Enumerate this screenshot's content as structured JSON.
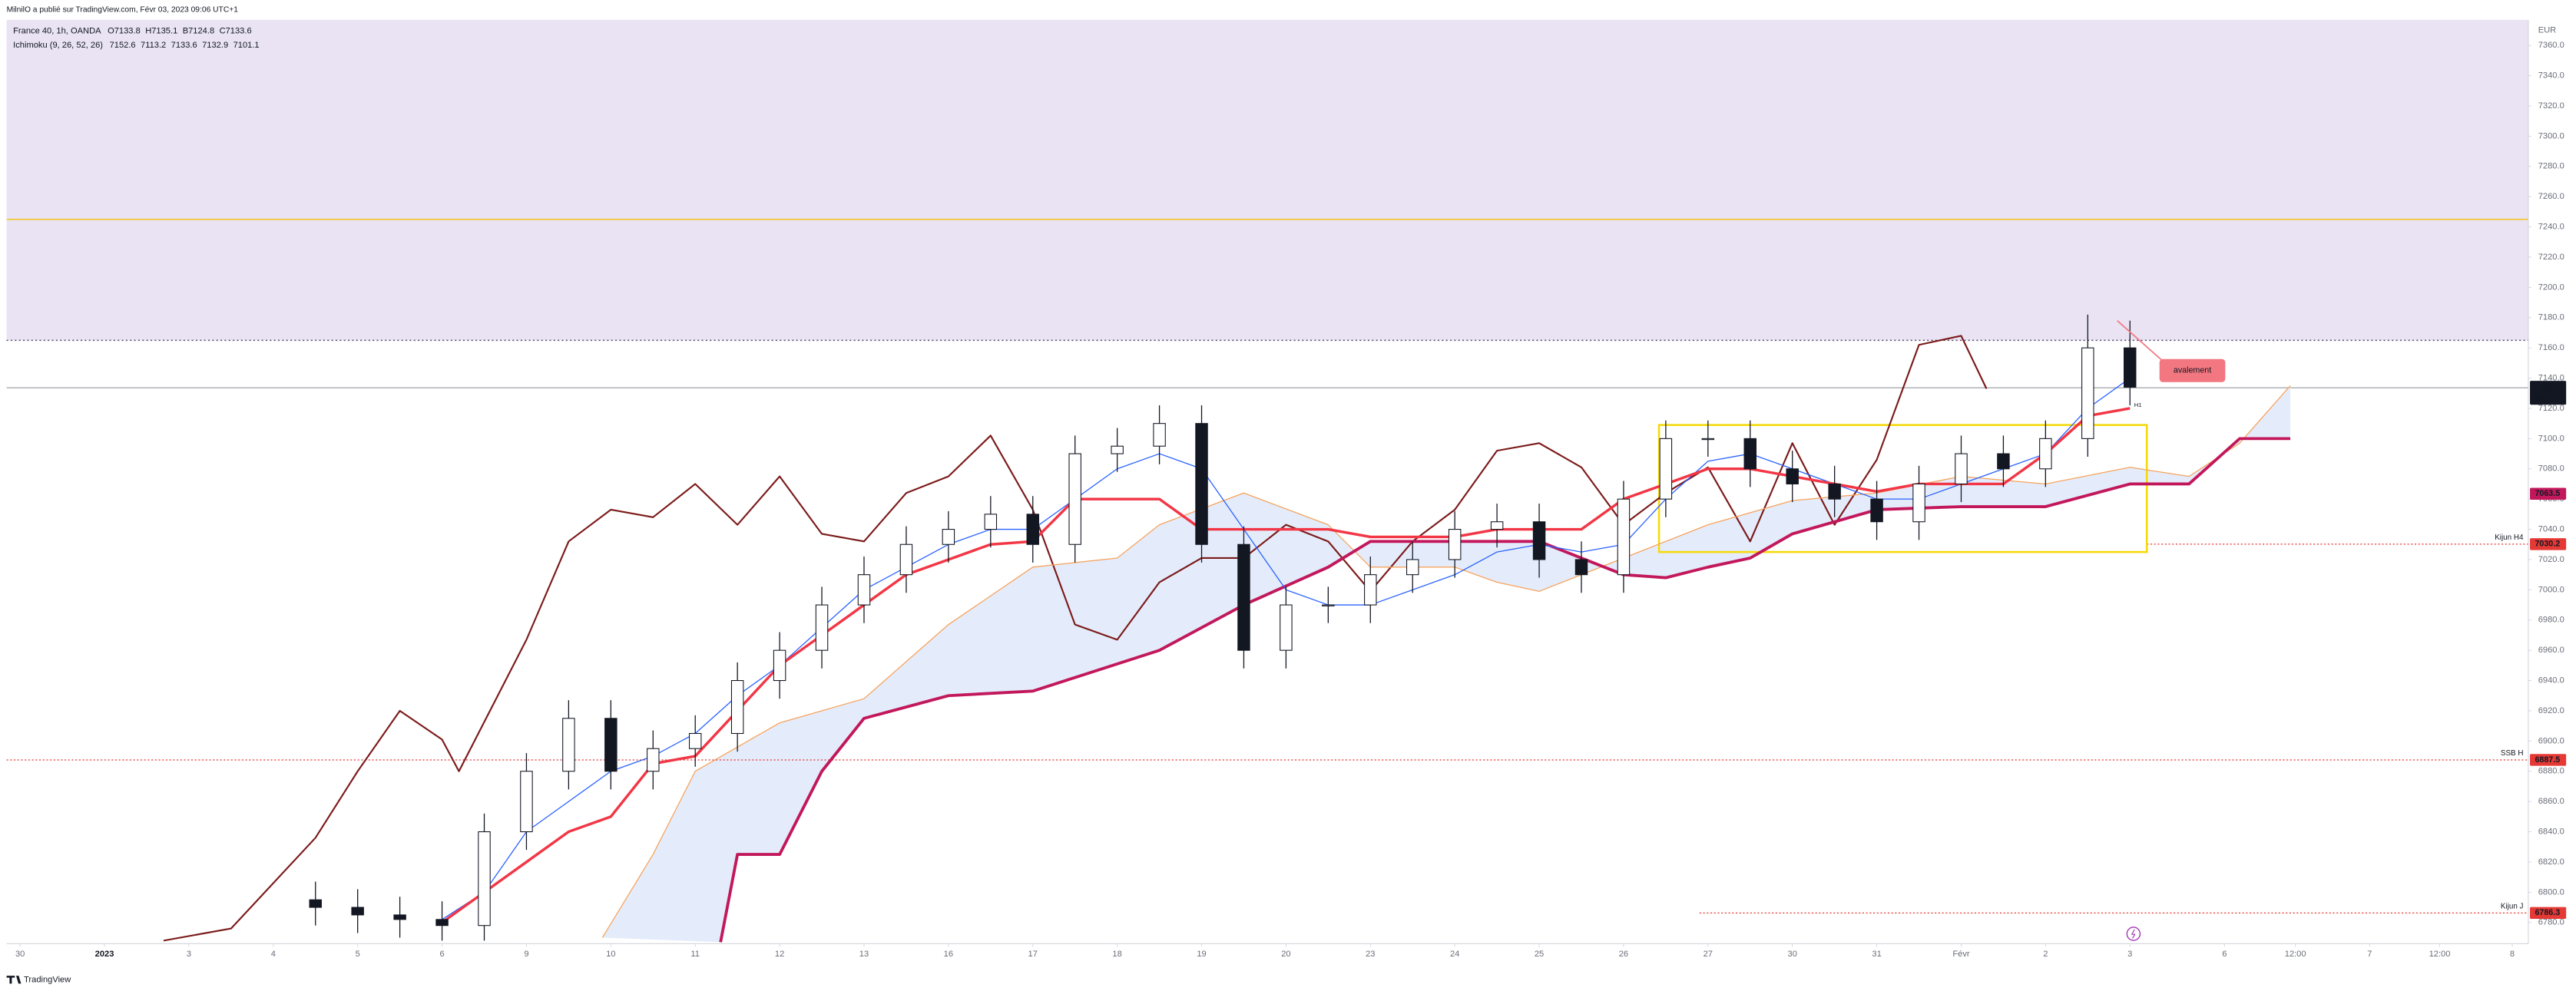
{
  "header": {
    "published": "MilnilO a publié sur TradingView.com, Févr 03, 2023 09:06 UTC+1",
    "symbol": "France 40, 1h, OANDA",
    "ohlc": [
      "O7133.8",
      "H7135.1",
      "B7124.8",
      "C7133.6"
    ],
    "indicator": "Ichimoku (9, 26, 52, 26)",
    "indicator_values": [
      {
        "value": 7152.6,
        "color": "#2962ff"
      },
      {
        "value": 7113.2,
        "color": "#f23645"
      },
      {
        "value": 7133.6,
        "color": "#2e7d32"
      },
      {
        "value": 7132.9,
        "color": "#f7a35c"
      },
      {
        "value": 7101.1,
        "color": "#c2185b"
      }
    ]
  },
  "currency": "EUR",
  "footer": "TradingView",
  "chart_data": {
    "type": "candlestick",
    "xlim": [
      -0.16,
      29.72
    ],
    "ylim": [
      6766,
      7377
    ],
    "grid": false,
    "xticks": [
      {
        "value": 0,
        "label": "30"
      },
      {
        "value": 1,
        "label": "2023"
      },
      {
        "value": 2,
        "label": "3"
      },
      {
        "value": 3,
        "label": "4"
      },
      {
        "value": 4,
        "label": "5"
      },
      {
        "value": 5,
        "label": "6"
      },
      {
        "value": 6,
        "label": "9"
      },
      {
        "value": 7,
        "label": "10"
      },
      {
        "value": 8,
        "label": "11"
      },
      {
        "value": 9,
        "label": "12"
      },
      {
        "value": 10,
        "label": "13"
      },
      {
        "value": 11,
        "label": "16"
      },
      {
        "value": 12,
        "label": "17"
      },
      {
        "value": 13,
        "label": "18"
      },
      {
        "value": 14,
        "label": "19"
      },
      {
        "value": 15,
        "label": "20"
      },
      {
        "value": 16,
        "label": "23"
      },
      {
        "value": 17,
        "label": "24"
      },
      {
        "value": 18,
        "label": "25"
      },
      {
        "value": 19,
        "label": "26"
      },
      {
        "value": 20,
        "label": "27"
      },
      {
        "value": 21,
        "label": "30"
      },
      {
        "value": 22,
        "label": "31"
      },
      {
        "value": 23,
        "label": "Févr"
      },
      {
        "value": 24,
        "label": "2"
      },
      {
        "value": 25,
        "label": "3"
      },
      {
        "value": 26.12,
        "label": "6"
      },
      {
        "value": 26.96,
        "label": "12:00"
      },
      {
        "value": 27.84,
        "label": "7"
      },
      {
        "value": 28.67,
        "label": "12:00"
      },
      {
        "value": 29.53,
        "label": "8"
      }
    ],
    "yticks": [
      {
        "value": 6780,
        "label": "6780.0"
      },
      {
        "value": 6800,
        "label": "6800.0"
      },
      {
        "value": 6820,
        "label": "6820.0"
      },
      {
        "value": 6840,
        "label": "6840.0"
      },
      {
        "value": 6860,
        "label": "6860.0"
      },
      {
        "value": 6880,
        "label": "6880.0"
      },
      {
        "value": 6900,
        "label": "6900.0"
      },
      {
        "value": 6920,
        "label": "6920.0"
      },
      {
        "value": 6940,
        "label": "6940.0"
      },
      {
        "value": 6960,
        "label": "6960.0"
      },
      {
        "value": 6980,
        "label": "6980.0"
      },
      {
        "value": 7000,
        "label": "7000.0"
      },
      {
        "value": 7020,
        "label": "7020.0"
      },
      {
        "value": 7040,
        "label": "7040.0"
      },
      {
        "value": 7060,
        "label": "7060.0"
      },
      {
        "value": 7080,
        "label": "7080.0"
      },
      {
        "value": 7100,
        "label": "7100.0"
      },
      {
        "value": 7120,
        "label": "7120.0"
      },
      {
        "value": 7140,
        "label": "7140.0"
      },
      {
        "value": 7160,
        "label": "7160.0"
      },
      {
        "value": 7180,
        "label": "7180.0"
      },
      {
        "value": 7200,
        "label": "7200.0"
      },
      {
        "value": 7220,
        "label": "7220.0"
      },
      {
        "value": 7240,
        "label": "7240.0"
      },
      {
        "value": 7260,
        "label": "7260.0"
      },
      {
        "value": 7280,
        "label": "7280.0"
      },
      {
        "value": 7300,
        "label": "7300.0"
      },
      {
        "value": 7320,
        "label": "7320.0"
      },
      {
        "value": 7340,
        "label": "7340.0"
      },
      {
        "value": 7360,
        "label": "7360.0"
      }
    ],
    "candles": {
      "up_color": "#ffffff",
      "down_color": "#131722",
      "x": [
        3.5,
        4,
        4.5,
        5,
        5.5,
        6,
        6.5,
        7,
        7.5,
        8,
        8.5,
        9,
        9.5,
        10,
        10.5,
        11,
        11.5,
        12,
        12.5,
        13,
        13.5,
        14,
        14.5,
        15,
        15.5,
        16,
        16.5,
        17,
        17.5,
        18,
        18.5,
        19,
        19.5,
        20,
        20.5,
        21,
        21.5,
        22,
        22.5,
        23,
        23.5,
        24,
        24.5,
        25
      ],
      "open": [
        6795,
        6790,
        6785,
        6782,
        6778,
        6840,
        6880,
        6915,
        6880,
        6895,
        6905,
        6940,
        6960,
        6990,
        7010,
        7030,
        7040,
        7050,
        7030,
        7090,
        7095,
        7110,
        7030,
        6960,
        6990,
        6990,
        7010,
        7020,
        7040,
        7045,
        7020,
        7010,
        7060,
        7100,
        7100,
        7080,
        7070,
        7060,
        7045,
        7070,
        7090,
        7080,
        7100,
        7160
      ],
      "high": [
        6807,
        6802,
        6797,
        6794,
        6852,
        6892,
        6927,
        6927,
        6907,
        6917,
        6952,
        6972,
        7002,
        7022,
        7042,
        7052,
        7062,
        7062,
        7102,
        7107,
        7122,
        7122,
        7042,
        7002,
        7002,
        7022,
        7032,
        7052,
        7057,
        7057,
        7032,
        7072,
        7112,
        7112,
        7112,
        7092,
        7082,
        7072,
        7082,
        7102,
        7102,
        7112,
        7182,
        7178
      ],
      "low": [
        6778,
        6773,
        6770,
        6768,
        6768,
        6828,
        6868,
        6868,
        6868,
        6883,
        6893,
        6928,
        6948,
        6978,
        6998,
        7018,
        7028,
        7018,
        7018,
        7078,
        7083,
        7018,
        6948,
        6948,
        6978,
        6978,
        6998,
        7008,
        7028,
        7008,
        6998,
        6998,
        7048,
        7088,
        7068,
        7058,
        7048,
        7033,
        7033,
        7058,
        7068,
        7068,
        7088,
        7122
      ],
      "close": [
        6790,
        6785,
        6782,
        6778,
        6840,
        6880,
        6915,
        6880,
        6895,
        6905,
        6940,
        6960,
        6990,
        7010,
        7030,
        7040,
        7050,
        7030,
        7090,
        7095,
        7110,
        7030,
        6960,
        6990,
        6990,
        7010,
        7020,
        7040,
        7045,
        7020,
        7010,
        7060,
        7100,
        7100,
        7080,
        7070,
        7060,
        7045,
        7070,
        7090,
        7080,
        7100,
        7160,
        7134
      ]
    },
    "cloud_color": "#dbe5fa",
    "series": [
      {
        "color": "#7b1a1a",
        "width": 1,
        "x": [
          1.7,
          2.5,
          3.5,
          4,
          4.5,
          5,
          5.2,
          6,
          6.5,
          7,
          7.5,
          8,
          8.5,
          9,
          9.5,
          10,
          10.5,
          11,
          11.5,
          12,
          12.5,
          13,
          13.5,
          14,
          14.5,
          15,
          15.5,
          16,
          16.5,
          17,
          17.5,
          18,
          18.5,
          19,
          19.5,
          20,
          20.5,
          21,
          21.5,
          22,
          22.5,
          23,
          23.3
        ],
        "values": [
          6768,
          6776,
          6836,
          6880,
          6920,
          6901,
          6880,
          6967,
          7032,
          7053,
          7048,
          7070,
          7043,
          7075,
          7037,
          7032,
          7064,
          7075,
          7102,
          7053,
          6977,
          6967,
          7005,
          7021,
          7021,
          7043,
          7032,
          6999,
          7032,
          7053,
          7092,
          7097,
          7081,
          7043,
          7064,
          7081,
          7032,
          7097,
          7043,
          7086,
          7162,
          7168,
          7133
        ]
      },
      {
        "color": "#f7a35c",
        "width": 0.6,
        "x": [
          6.9,
          7.5,
          8,
          9,
          10,
          11,
          12,
          13,
          13.5,
          14.5,
          15.5,
          16,
          17,
          17.5,
          18,
          19,
          20,
          21,
          22,
          23,
          24,
          25,
          25.7,
          26.3,
          26.9
        ],
        "values": [
          6770,
          6825,
          6880,
          6912,
          6928,
          6977,
          7015,
          7021,
          7043,
          7064,
          7043,
          7015,
          7015,
          7005,
          6999,
          7021,
          7043,
          7059,
          7064,
          7075,
          7070,
          7081,
          7075,
          7097,
          7135
        ]
      },
      {
        "color": "#c2185b",
        "width": 1.8,
        "x": [
          8.3,
          8.5,
          9,
          9.5,
          10,
          11,
          12,
          13.5,
          14.5,
          15.5,
          16,
          17,
          18,
          19,
          19.5,
          20,
          20.5,
          21,
          22,
          23,
          24,
          25,
          25.7,
          26.3,
          26.9
        ],
        "values": [
          6767,
          6825,
          6825,
          6880,
          6915,
          6930,
          6933,
          6960,
          6990,
          7015,
          7032,
          7032,
          7032,
          7010,
          7008,
          7015,
          7021,
          7037,
          7053,
          7055,
          7055,
          7070,
          7070,
          7100,
          7100
        ]
      },
      {
        "color": "#2962ff",
        "width": 0.6,
        "x": [
          5,
          5.5,
          6,
          6.5,
          7,
          7.5,
          8,
          8.5,
          9,
          9.5,
          10,
          10.5,
          11,
          11.5,
          12,
          12.5,
          13,
          13.5,
          14,
          14.5,
          15,
          15.5,
          16,
          16.5,
          17,
          17.5,
          18,
          18.5,
          19,
          19.5,
          20,
          20.5,
          21,
          21.5,
          22,
          22.5,
          23,
          23.5,
          24,
          24.5,
          25
        ],
        "values": [
          6782,
          6800,
          6840,
          6860,
          6880,
          6890,
          6905,
          6930,
          6950,
          6975,
          7000,
          7015,
          7030,
          7040,
          7040,
          7060,
          7080,
          7090,
          7080,
          7040,
          7000,
          6990,
          6990,
          7000,
          7010,
          7025,
          7030,
          7025,
          7030,
          7060,
          7085,
          7090,
          7080,
          7070,
          7060,
          7060,
          7070,
          7080,
          7090,
          7120,
          7140
        ]
      },
      {
        "color": "#f23645",
        "width": 1.6,
        "x": [
          5,
          5.5,
          6,
          6.5,
          7,
          7.5,
          8,
          8.5,
          9,
          9.5,
          10,
          10.5,
          11,
          11.5,
          12,
          12.5,
          13,
          13.5,
          14,
          14.5,
          15,
          15.5,
          16,
          16.5,
          17,
          17.5,
          18,
          18.5,
          19,
          19.5,
          20,
          20.5,
          21,
          21.5,
          22,
          22.5,
          23,
          23.5,
          24,
          24.5,
          25
        ],
        "values": [
          6780,
          6800,
          6820,
          6840,
          6850,
          6885,
          6890,
          6920,
          6950,
          6970,
          6990,
          7010,
          7020,
          7030,
          7032,
          7060,
          7060,
          7060,
          7040,
          7040,
          7040,
          7040,
          7035,
          7035,
          7035,
          7040,
          7040,
          7040,
          7060,
          7070,
          7080,
          7080,
          7075,
          7070,
          7065,
          7070,
          7070,
          7070,
          7090,
          7115,
          7120
        ]
      }
    ],
    "zone": {
      "from": 7165,
      "color": "#e9e3f3"
    },
    "hlines": [
      {
        "value": 7245,
        "color": "#f5c518",
        "dash": "none"
      },
      {
        "value": 7165,
        "color": "#5d4f6e",
        "dash": "1 1.5"
      }
    ],
    "box": {
      "x": [
        19.42,
        25.2
      ],
      "y": [
        7025,
        7109
      ],
      "color": "#f5d90a"
    },
    "levels": [
      {
        "name": "SSB H",
        "value": 6887.5,
        "color": "#e53935"
      },
      {
        "name": "Kijun H4",
        "value": 7030.2,
        "color": "#e53935",
        "from": 25.2
      },
      {
        "name": "Kijun J",
        "value": 6786.3,
        "color": "#e53935",
        "from": 19.9
      }
    ],
    "last_price": {
      "value": 7133.6,
      "countdown": "53:56",
      "color": "#131722"
    },
    "cloud_label": {
      "value": 7063.5,
      "color": "#c2185b"
    },
    "annotation": {
      "text": "avalement",
      "tag": "H1",
      "x": 25.35,
      "y": 7145,
      "color": "#f27780"
    }
  }
}
